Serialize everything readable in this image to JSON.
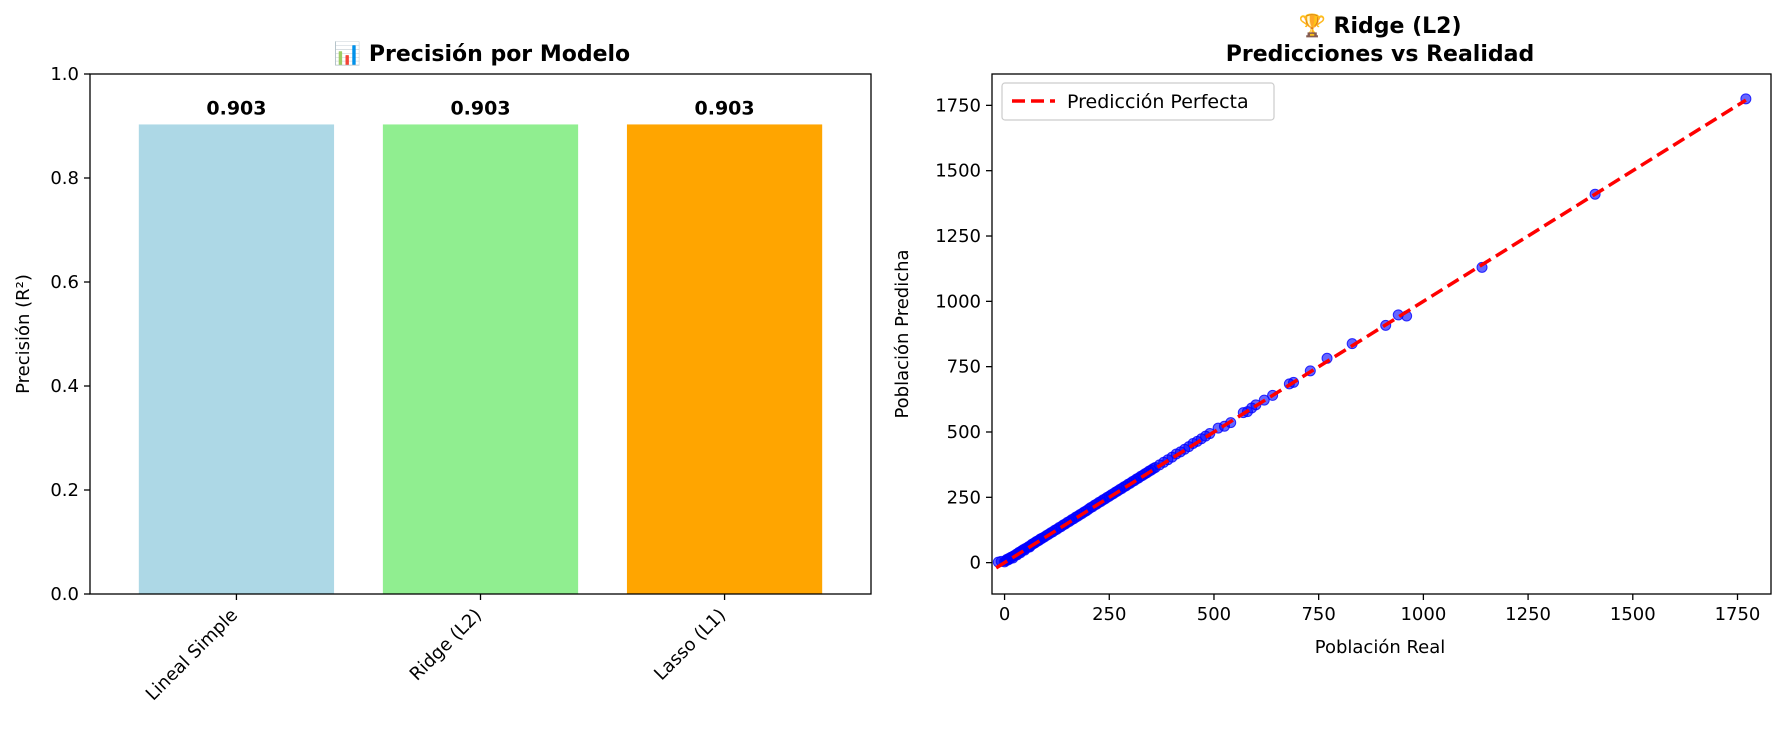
{
  "chart_data": [
    {
      "type": "bar",
      "title": "📊 Precisión por Modelo",
      "ylabel": "Precisión (R²)",
      "xlabel": "",
      "categories": [
        "Lineal Simple",
        "Ridge (L2)",
        "Lasso (L1)"
      ],
      "values": [
        0.903,
        0.903,
        0.903
      ],
      "value_labels": [
        "0.903",
        "0.903",
        "0.903"
      ],
      "colors": [
        "#add8e6",
        "#90ee90",
        "#ffa500"
      ],
      "ylim": [
        0,
        1.0
      ],
      "yticks": [
        "0.0",
        "0.2",
        "0.4",
        "0.6",
        "0.8",
        "1.0"
      ],
      "grid": false
    },
    {
      "type": "scatter",
      "title": "🏆 Ridge (L2)",
      "subtitle": "Predicciones vs Realidad",
      "xlabel": "Población Real",
      "ylabel": "Población Predicha",
      "xlim": [
        -30,
        1830
      ],
      "ylim": [
        -120,
        1870
      ],
      "xticks": [
        "0",
        "250",
        "500",
        "750",
        "1000",
        "1250",
        "1500",
        "1750"
      ],
      "yticks": [
        "0",
        "250",
        "500",
        "750",
        "1000",
        "1250",
        "1500",
        "1750"
      ],
      "point_color": "#0000ff",
      "grid": false,
      "legend": {
        "position": "top-left",
        "label": "Predicción Perfecta"
      },
      "reference_line": {
        "label": "Predicción Perfecta",
        "color": "#ff0000",
        "from": [
          -20,
          -20
        ],
        "to": [
          1770,
          1770
        ]
      },
      "points": [
        [
          -15,
          2
        ],
        [
          -8,
          5
        ],
        [
          0,
          3
        ],
        [
          3,
          8
        ],
        [
          5,
          12
        ],
        [
          8,
          10
        ],
        [
          10,
          16
        ],
        [
          12,
          14
        ],
        [
          15,
          20
        ],
        [
          18,
          22
        ],
        [
          20,
          18
        ],
        [
          22,
          26
        ],
        [
          25,
          28
        ],
        [
          28,
          32
        ],
        [
          30,
          30
        ],
        [
          32,
          36
        ],
        [
          35,
          40
        ],
        [
          38,
          38
        ],
        [
          40,
          44
        ],
        [
          42,
          46
        ],
        [
          45,
          50
        ],
        [
          48,
          48
        ],
        [
          50,
          54
        ],
        [
          55,
          58
        ],
        [
          58,
          62
        ],
        [
          60,
          60
        ],
        [
          63,
          66
        ],
        [
          65,
          70
        ],
        [
          68,
          72
        ],
        [
          70,
          74
        ],
        [
          73,
          76
        ],
        [
          75,
          80
        ],
        [
          78,
          82
        ],
        [
          80,
          84
        ],
        [
          83,
          86
        ],
        [
          85,
          90
        ],
        [
          88,
          92
        ],
        [
          90,
          94
        ],
        [
          95,
          98
        ],
        [
          100,
          104
        ],
        [
          105,
          108
        ],
        [
          110,
          114
        ],
        [
          115,
          118
        ],
        [
          120,
          124
        ],
        [
          125,
          128
        ],
        [
          130,
          134
        ],
        [
          135,
          138
        ],
        [
          140,
          144
        ],
        [
          145,
          148
        ],
        [
          150,
          154
        ],
        [
          155,
          158
        ],
        [
          160,
          164
        ],
        [
          165,
          168
        ],
        [
          170,
          174
        ],
        [
          175,
          178
        ],
        [
          180,
          184
        ],
        [
          185,
          188
        ],
        [
          190,
          194
        ],
        [
          195,
          198
        ],
        [
          200,
          204
        ],
        [
          205,
          210
        ],
        [
          210,
          214
        ],
        [
          215,
          220
        ],
        [
          220,
          224
        ],
        [
          225,
          230
        ],
        [
          230,
          234
        ],
        [
          235,
          240
        ],
        [
          240,
          244
        ],
        [
          245,
          250
        ],
        [
          250,
          254
        ],
        [
          255,
          260
        ],
        [
          260,
          264
        ],
        [
          265,
          270
        ],
        [
          270,
          274
        ],
        [
          275,
          280
        ],
        [
          280,
          284
        ],
        [
          285,
          290
        ],
        [
          290,
          294
        ],
        [
          295,
          300
        ],
        [
          300,
          304
        ],
        [
          305,
          310
        ],
        [
          310,
          314
        ],
        [
          315,
          320
        ],
        [
          320,
          324
        ],
        [
          325,
          330
        ],
        [
          330,
          334
        ],
        [
          335,
          340
        ],
        [
          340,
          344
        ],
        [
          345,
          350
        ],
        [
          350,
          354
        ],
        [
          355,
          360
        ],
        [
          360,
          364
        ],
        [
          370,
          374
        ],
        [
          380,
          384
        ],
        [
          390,
          394
        ],
        [
          400,
          404
        ],
        [
          410,
          416
        ],
        [
          420,
          424
        ],
        [
          430,
          434
        ],
        [
          440,
          444
        ],
        [
          450,
          456
        ],
        [
          460,
          464
        ],
        [
          470,
          474
        ],
        [
          480,
          484
        ],
        [
          490,
          494
        ],
        [
          510,
          515
        ],
        [
          525,
          522
        ],
        [
          540,
          536
        ],
        [
          570,
          574
        ],
        [
          580,
          578
        ],
        [
          590,
          592
        ],
        [
          600,
          604
        ],
        [
          620,
          622
        ],
        [
          640,
          640
        ],
        [
          680,
          684
        ],
        [
          690,
          690
        ],
        [
          730,
          734
        ],
        [
          770,
          782
        ],
        [
          830,
          838
        ],
        [
          910,
          908
        ],
        [
          940,
          948
        ],
        [
          960,
          944
        ],
        [
          1140,
          1130
        ],
        [
          1410,
          1410
        ],
        [
          1770,
          1775
        ]
      ]
    }
  ]
}
